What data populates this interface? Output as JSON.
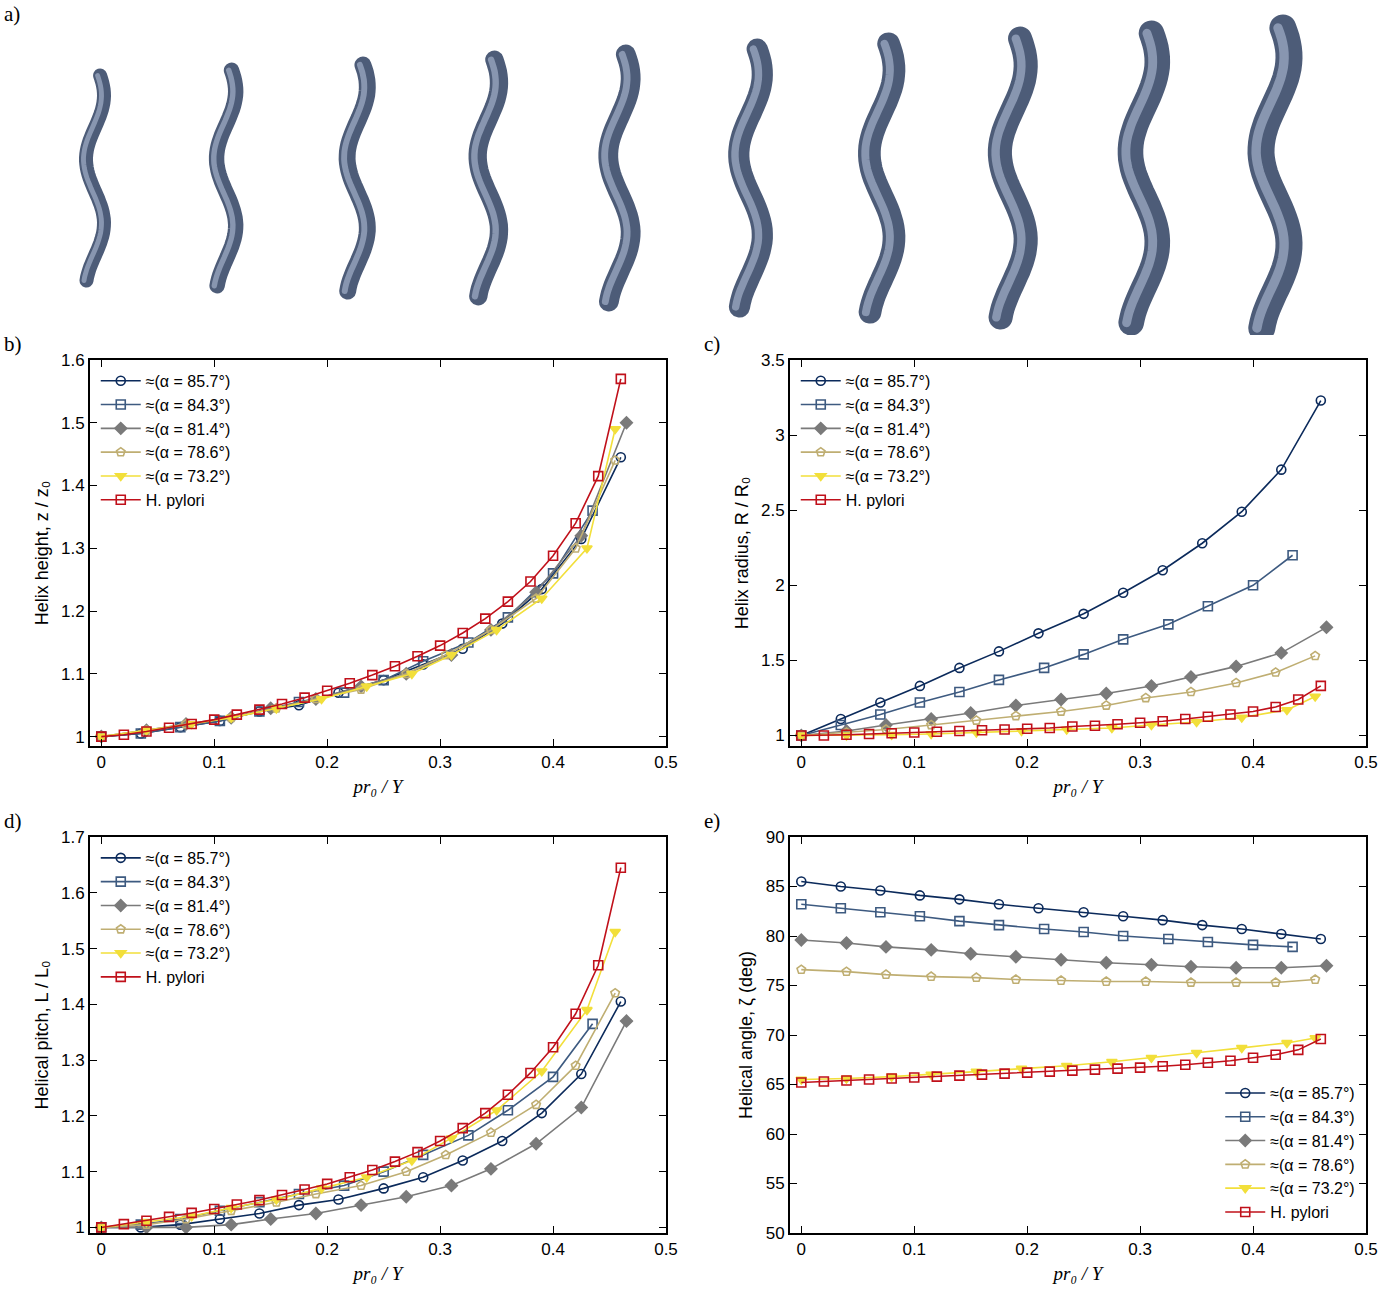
{
  "panel_a": {
    "label": "a)"
  },
  "chart_data": [
    {
      "type": "line",
      "title": "b)",
      "x_label": "pr₀ / Y",
      "y_label": "Helix height, z / z₀",
      "xlim": [
        -0.01,
        0.5
      ],
      "xticks": [
        0,
        0.1,
        0.2,
        0.3,
        0.4,
        0.5
      ],
      "ylim": [
        0.985,
        1.6
      ],
      "yticks": [
        1,
        1.1,
        1.2,
        1.3,
        1.4,
        1.5,
        1.6
      ],
      "grid": false,
      "legend": "top left",
      "series": [
        {
          "name": "≈(α = 85.7°)",
          "color": "#0b2a5b",
          "marker": "circle-open",
          "x": [
            0,
            0.035,
            0.07,
            0.105,
            0.14,
            0.175,
            0.21,
            0.25,
            0.285,
            0.32,
            0.355,
            0.39,
            0.425,
            0.46
          ],
          "values": [
            1,
            1.005,
            1.015,
            1.025,
            1.04,
            1.05,
            1.07,
            1.09,
            1.115,
            1.14,
            1.18,
            1.235,
            1.315,
            1.445
          ]
        },
        {
          "name": "≈(α = 84.3°)",
          "color": "#3d5a80",
          "marker": "square-open",
          "x": [
            0,
            0.035,
            0.07,
            0.105,
            0.14,
            0.175,
            0.215,
            0.25,
            0.285,
            0.325,
            0.36,
            0.4,
            0.435
          ],
          "values": [
            1,
            1.005,
            1.015,
            1.025,
            1.04,
            1.055,
            1.07,
            1.09,
            1.12,
            1.15,
            1.19,
            1.26,
            1.36
          ]
        },
        {
          "name": "≈(α = 81.4°)",
          "color": "#7a7a7a",
          "marker": "diamond",
          "x": [
            0,
            0.04,
            0.075,
            0.115,
            0.15,
            0.19,
            0.23,
            0.27,
            0.31,
            0.345,
            0.385,
            0.425,
            0.465
          ],
          "values": [
            1,
            1.01,
            1.02,
            1.03,
            1.045,
            1.06,
            1.08,
            1.1,
            1.13,
            1.17,
            1.23,
            1.32,
            1.5
          ]
        },
        {
          "name": "≈(α = 78.6°)",
          "color": "#bfae72",
          "marker": "pentagon-open",
          "x": [
            0,
            0.04,
            0.075,
            0.115,
            0.155,
            0.19,
            0.23,
            0.27,
            0.305,
            0.345,
            0.385,
            0.42,
            0.455
          ],
          "values": [
            1,
            1.01,
            1.02,
            1.03,
            1.045,
            1.06,
            1.075,
            1.1,
            1.13,
            1.17,
            1.22,
            1.3,
            1.44
          ]
        },
        {
          "name": "≈(α = 73.2°)",
          "color": "#f2df3a",
          "marker": "triangle-down",
          "x": [
            0,
            0.04,
            0.08,
            0.115,
            0.155,
            0.195,
            0.235,
            0.275,
            0.31,
            0.35,
            0.39,
            0.43,
            0.455
          ],
          "values": [
            1,
            1.01,
            1.02,
            1.03,
            1.045,
            1.06,
            1.08,
            1.1,
            1.13,
            1.17,
            1.22,
            1.3,
            1.49
          ]
        },
        {
          "name": "H. pylori",
          "color": "#c0101a",
          "marker": "square-open",
          "x": [
            0,
            0.02,
            0.04,
            0.06,
            0.08,
            0.1,
            0.12,
            0.14,
            0.16,
            0.18,
            0.2,
            0.22,
            0.24,
            0.26,
            0.28,
            0.3,
            0.32,
            0.34,
            0.36,
            0.38,
            0.4,
            0.42,
            0.44,
            0.46
          ],
          "values": [
            1,
            1.003,
            1.008,
            1.014,
            1.02,
            1.027,
            1.035,
            1.043,
            1.052,
            1.062,
            1.073,
            1.085,
            1.098,
            1.112,
            1.128,
            1.145,
            1.165,
            1.188,
            1.215,
            1.247,
            1.288,
            1.34,
            1.415,
            1.57
          ]
        }
      ]
    },
    {
      "type": "line",
      "title": "c)",
      "x_label": "pr₀ / Y",
      "y_label": "Helix radius, R / R₀",
      "xlim": [
        -0.01,
        0.5
      ],
      "xticks": [
        0,
        0.1,
        0.2,
        0.3,
        0.4,
        0.5
      ],
      "ylim": [
        0.93,
        3.5
      ],
      "yticks": [
        1,
        1.5,
        2,
        2.5,
        3,
        3.5
      ],
      "grid": false,
      "legend": "top left",
      "series": [
        {
          "name": "≈(α = 85.7°)",
          "color": "#0b2a5b",
          "marker": "circle-open",
          "x": [
            0,
            0.035,
            0.07,
            0.105,
            0.14,
            0.175,
            0.21,
            0.25,
            0.285,
            0.32,
            0.355,
            0.39,
            0.425,
            0.46
          ],
          "values": [
            1,
            1.11,
            1.22,
            1.33,
            1.45,
            1.56,
            1.68,
            1.81,
            1.95,
            2.1,
            2.28,
            2.49,
            2.77,
            3.23
          ]
        },
        {
          "name": "≈(α = 84.3°)",
          "color": "#3d5a80",
          "marker": "square-open",
          "x": [
            0,
            0.035,
            0.07,
            0.105,
            0.14,
            0.175,
            0.215,
            0.25,
            0.285,
            0.325,
            0.36,
            0.4,
            0.435
          ],
          "values": [
            1,
            1.07,
            1.14,
            1.22,
            1.29,
            1.37,
            1.45,
            1.54,
            1.64,
            1.74,
            1.86,
            2.0,
            2.2
          ]
        },
        {
          "name": "≈(α = 81.4°)",
          "color": "#7a7a7a",
          "marker": "diamond",
          "x": [
            0,
            0.04,
            0.075,
            0.115,
            0.15,
            0.19,
            0.23,
            0.27,
            0.31,
            0.345,
            0.385,
            0.425,
            0.465
          ],
          "values": [
            1,
            1.03,
            1.07,
            1.11,
            1.15,
            1.2,
            1.24,
            1.28,
            1.33,
            1.39,
            1.46,
            1.55,
            1.72
          ]
        },
        {
          "name": "≈(α = 78.6°)",
          "color": "#bfae72",
          "marker": "pentagon-open",
          "x": [
            0,
            0.04,
            0.075,
            0.115,
            0.155,
            0.19,
            0.23,
            0.27,
            0.305,
            0.345,
            0.385,
            0.42,
            0.455
          ],
          "values": [
            1,
            1.02,
            1.04,
            1.07,
            1.1,
            1.13,
            1.16,
            1.2,
            1.25,
            1.29,
            1.35,
            1.42,
            1.53
          ]
        },
        {
          "name": "≈(α = 73.2°)",
          "color": "#f2df3a",
          "marker": "triangle-down",
          "x": [
            0,
            0.04,
            0.08,
            0.115,
            0.155,
            0.195,
            0.235,
            0.275,
            0.31,
            0.35,
            0.39,
            0.43,
            0.455
          ],
          "values": [
            1,
            1.0,
            1.005,
            1.01,
            1.02,
            1.03,
            1.04,
            1.05,
            1.07,
            1.09,
            1.12,
            1.17,
            1.26
          ]
        },
        {
          "name": "H. pylori",
          "color": "#c0101a",
          "marker": "square-open",
          "x": [
            0,
            0.02,
            0.04,
            0.06,
            0.08,
            0.1,
            0.12,
            0.14,
            0.16,
            0.18,
            0.2,
            0.22,
            0.24,
            0.26,
            0.28,
            0.3,
            0.32,
            0.34,
            0.36,
            0.38,
            0.4,
            0.42,
            0.44,
            0.46
          ],
          "values": [
            1,
            1.0,
            1.005,
            1.01,
            1.015,
            1.02,
            1.025,
            1.03,
            1.035,
            1.04,
            1.045,
            1.05,
            1.06,
            1.065,
            1.075,
            1.085,
            1.095,
            1.11,
            1.125,
            1.14,
            1.16,
            1.19,
            1.24,
            1.33
          ]
        }
      ]
    },
    {
      "type": "line",
      "title": "d)",
      "x_label": "pr₀ / Y",
      "y_label": "Helical pitch, L / L₀",
      "xlim": [
        -0.01,
        0.5
      ],
      "xticks": [
        0,
        0.1,
        0.2,
        0.3,
        0.4,
        0.5
      ],
      "ylim": [
        0.99,
        1.7
      ],
      "yticks": [
        1,
        1.1,
        1.2,
        1.3,
        1.4,
        1.5,
        1.6,
        1.7
      ],
      "grid": false,
      "legend": "top left",
      "series": [
        {
          "name": "≈(α = 85.7°)",
          "color": "#0b2a5b",
          "marker": "circle-open",
          "x": [
            0,
            0.035,
            0.07,
            0.105,
            0.14,
            0.175,
            0.21,
            0.25,
            0.285,
            0.32,
            0.355,
            0.39,
            0.425,
            0.46
          ],
          "values": [
            1,
            1.0,
            1.005,
            1.015,
            1.025,
            1.04,
            1.05,
            1.07,
            1.09,
            1.12,
            1.155,
            1.205,
            1.275,
            1.405
          ]
        },
        {
          "name": "≈(α = 84.3°)",
          "color": "#3d5a80",
          "marker": "square-open",
          "x": [
            0,
            0.035,
            0.07,
            0.105,
            0.14,
            0.175,
            0.215,
            0.25,
            0.285,
            0.325,
            0.36,
            0.4,
            0.435
          ],
          "values": [
            1,
            1.005,
            1.015,
            1.03,
            1.045,
            1.06,
            1.075,
            1.1,
            1.13,
            1.165,
            1.21,
            1.27,
            1.365
          ]
        },
        {
          "name": "≈(α = 81.4°)",
          "color": "#7a7a7a",
          "marker": "diamond",
          "x": [
            0,
            0.04,
            0.075,
            0.115,
            0.15,
            0.19,
            0.23,
            0.27,
            0.31,
            0.345,
            0.385,
            0.425,
            0.465
          ],
          "values": [
            1,
            1.0,
            1.0,
            1.005,
            1.015,
            1.025,
            1.04,
            1.055,
            1.075,
            1.105,
            1.15,
            1.215,
            1.37
          ]
        },
        {
          "name": "≈(α = 78.6°)",
          "color": "#bfae72",
          "marker": "pentagon-open",
          "x": [
            0,
            0.04,
            0.075,
            0.115,
            0.155,
            0.19,
            0.23,
            0.27,
            0.305,
            0.345,
            0.385,
            0.42,
            0.455
          ],
          "values": [
            1,
            1.005,
            1.015,
            1.03,
            1.045,
            1.06,
            1.075,
            1.1,
            1.13,
            1.17,
            1.22,
            1.29,
            1.42
          ]
        },
        {
          "name": "≈(α = 73.2°)",
          "color": "#f2df3a",
          "marker": "triangle-down",
          "x": [
            0,
            0.04,
            0.08,
            0.115,
            0.155,
            0.195,
            0.235,
            0.275,
            0.31,
            0.35,
            0.39,
            0.43,
            0.455
          ],
          "values": [
            1,
            1.01,
            1.02,
            1.035,
            1.05,
            1.07,
            1.09,
            1.12,
            1.16,
            1.21,
            1.28,
            1.39,
            1.53
          ]
        },
        {
          "name": "H. pylori",
          "color": "#c0101a",
          "marker": "square-open",
          "x": [
            0,
            0.02,
            0.04,
            0.06,
            0.08,
            0.1,
            0.12,
            0.14,
            0.16,
            0.18,
            0.2,
            0.22,
            0.24,
            0.26,
            0.28,
            0.3,
            0.32,
            0.34,
            0.36,
            0.38,
            0.4,
            0.42,
            0.44,
            0.46
          ],
          "values": [
            1,
            1.006,
            1.012,
            1.019,
            1.026,
            1.033,
            1.041,
            1.049,
            1.058,
            1.068,
            1.078,
            1.09,
            1.103,
            1.118,
            1.135,
            1.155,
            1.178,
            1.205,
            1.238,
            1.277,
            1.323,
            1.383,
            1.47,
            1.645
          ]
        }
      ]
    },
    {
      "type": "line",
      "title": "e)",
      "x_label": "pr₀ / Y",
      "y_label": "Helical angle, ζ (deg)",
      "xlim": [
        -0.01,
        0.5
      ],
      "xticks": [
        0,
        0.1,
        0.2,
        0.3,
        0.4,
        0.5
      ],
      "ylim": [
        50,
        90
      ],
      "yticks": [
        50,
        55,
        60,
        65,
        70,
        75,
        80,
        85,
        90
      ],
      "grid": false,
      "legend": "bottom right",
      "series": [
        {
          "name": "≈(α = 85.7°)",
          "color": "#0b2a5b",
          "marker": "circle-open",
          "x": [
            0,
            0.035,
            0.07,
            0.105,
            0.14,
            0.175,
            0.21,
            0.25,
            0.285,
            0.32,
            0.355,
            0.39,
            0.425,
            0.46
          ],
          "values": [
            85.5,
            85.0,
            84.6,
            84.1,
            83.7,
            83.2,
            82.8,
            82.4,
            82.0,
            81.6,
            81.1,
            80.7,
            80.2,
            79.7
          ]
        },
        {
          "name": "≈(α = 84.3°)",
          "color": "#3d5a80",
          "marker": "square-open",
          "x": [
            0,
            0.035,
            0.07,
            0.105,
            0.14,
            0.175,
            0.215,
            0.25,
            0.285,
            0.325,
            0.36,
            0.4,
            0.435
          ],
          "values": [
            83.2,
            82.8,
            82.4,
            82.0,
            81.5,
            81.1,
            80.7,
            80.4,
            80.0,
            79.7,
            79.4,
            79.1,
            78.9
          ]
        },
        {
          "name": "≈(α = 81.4°)",
          "color": "#7a7a7a",
          "marker": "diamond",
          "x": [
            0,
            0.04,
            0.075,
            0.115,
            0.15,
            0.19,
            0.23,
            0.27,
            0.31,
            0.345,
            0.385,
            0.425,
            0.465
          ],
          "values": [
            79.6,
            79.3,
            78.9,
            78.6,
            78.2,
            77.9,
            77.6,
            77.3,
            77.1,
            76.9,
            76.8,
            76.8,
            77.0
          ]
        },
        {
          "name": "≈(α = 78.6°)",
          "color": "#bfae72",
          "marker": "pentagon-open",
          "x": [
            0,
            0.04,
            0.075,
            0.115,
            0.155,
            0.19,
            0.23,
            0.27,
            0.305,
            0.345,
            0.385,
            0.42,
            0.455
          ],
          "values": [
            76.6,
            76.4,
            76.1,
            75.9,
            75.8,
            75.6,
            75.5,
            75.4,
            75.4,
            75.3,
            75.3,
            75.3,
            75.6
          ]
        },
        {
          "name": "≈(α = 73.2°)",
          "color": "#f2df3a",
          "marker": "triangle-down",
          "x": [
            0,
            0.04,
            0.08,
            0.115,
            0.155,
            0.195,
            0.235,
            0.275,
            0.31,
            0.35,
            0.39,
            0.43,
            0.455
          ],
          "values": [
            65.5,
            65.6,
            65.8,
            66.0,
            66.3,
            66.6,
            66.9,
            67.3,
            67.7,
            68.2,
            68.7,
            69.2,
            69.7
          ]
        },
        {
          "name": "H. pylori",
          "color": "#c0101a",
          "marker": "square-open",
          "x": [
            0,
            0.02,
            0.04,
            0.06,
            0.08,
            0.1,
            0.12,
            0.14,
            0.16,
            0.18,
            0.2,
            0.22,
            0.24,
            0.26,
            0.28,
            0.3,
            0.32,
            0.34,
            0.36,
            0.38,
            0.4,
            0.42,
            0.44,
            0.46
          ],
          "values": [
            65.2,
            65.3,
            65.4,
            65.5,
            65.6,
            65.7,
            65.8,
            65.9,
            66.0,
            66.1,
            66.2,
            66.3,
            66.4,
            66.5,
            66.6,
            66.7,
            66.85,
            67.0,
            67.2,
            67.4,
            67.7,
            68.0,
            68.5,
            69.6
          ]
        }
      ]
    }
  ]
}
